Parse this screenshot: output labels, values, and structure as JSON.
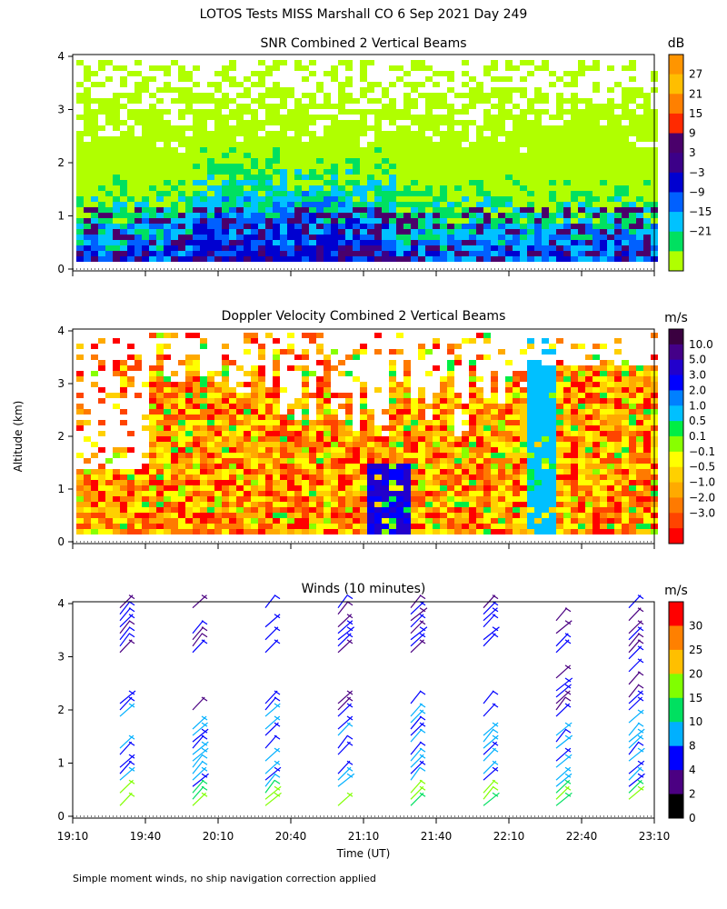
{
  "title": "LOTOS Tests MISS Marshall CO    6 Sep 2021 Day 249",
  "ylabel": "Altitude (km)",
  "xlabel": "Time (UT)",
  "footnote": "Simple moment winds, no ship navigation correction applied",
  "x_ticks": [
    "19:10",
    "19:40",
    "20:10",
    "20:40",
    "21:10",
    "21:40",
    "22:10",
    "22:40",
    "23:10"
  ],
  "y_ticks": [
    "0",
    "1",
    "2",
    "3",
    "4"
  ],
  "chart_data": [
    {
      "type": "heatmap",
      "title": "SNR Combined 2 Vertical Beams",
      "ylabel": "Altitude (km)",
      "xlim_ut": [
        "19:10",
        "23:10"
      ],
      "ylim": [
        0,
        4
      ],
      "colorbar": {
        "unit": "dB",
        "labels": [
          "27",
          "21",
          "15",
          "9",
          "3",
          "−3",
          "−9",
          "−15",
          "−21"
        ],
        "colors": [
          "#ff9500",
          "#ffbe00",
          "#ff8000",
          "#ff2a00",
          "#4a006b",
          "#3c0088",
          "#0000d0",
          "#0060ff",
          "#00c2ff",
          "#00e060",
          "#b0ff00"
        ]
      }
    },
    {
      "type": "heatmap",
      "title": "Doppler Velocity Combined 2 Vertical Beams",
      "ylabel": "Altitude (km)",
      "xlim_ut": [
        "19:10",
        "23:10"
      ],
      "ylim": [
        0,
        4
      ],
      "colorbar": {
        "unit": "m/s",
        "labels": [
          "10.0",
          "5.0",
          "3.0",
          "2.0",
          "1.0",
          "0.5",
          "0.1",
          "−0.1",
          "−0.5",
          "−1.0",
          "−2.0",
          "−3.0"
        ],
        "colors": [
          "#3a0040",
          "#440088",
          "#2200cc",
          "#0000ff",
          "#0080ff",
          "#00c0ff",
          "#00ee44",
          "#88ff00",
          "#ffff00",
          "#ffd000",
          "#ffaa00",
          "#ff7a00",
          "#ff4400",
          "#ff0000"
        ]
      }
    },
    {
      "type": "scatter",
      "title": "Winds (10 minutes)",
      "ylabel": "Altitude (km)",
      "xlim_ut": [
        "19:10",
        "23:10"
      ],
      "ylim": [
        0,
        4
      ],
      "colorbar": {
        "unit": "m/s",
        "labels": [
          "30",
          "25",
          "20",
          "15",
          "10",
          "8",
          "4",
          "2",
          "0"
        ],
        "colors": [
          "#ff0000",
          "#ff8000",
          "#ffbf00",
          "#80ff00",
          "#00e060",
          "#00b0ff",
          "#0000ff",
          "#4b0082",
          "#000000"
        ]
      },
      "profile_times_ut": [
        "19:25",
        "19:55",
        "20:25",
        "20:55",
        "21:25",
        "21:55",
        "22:25",
        "22:55"
      ]
    }
  ]
}
